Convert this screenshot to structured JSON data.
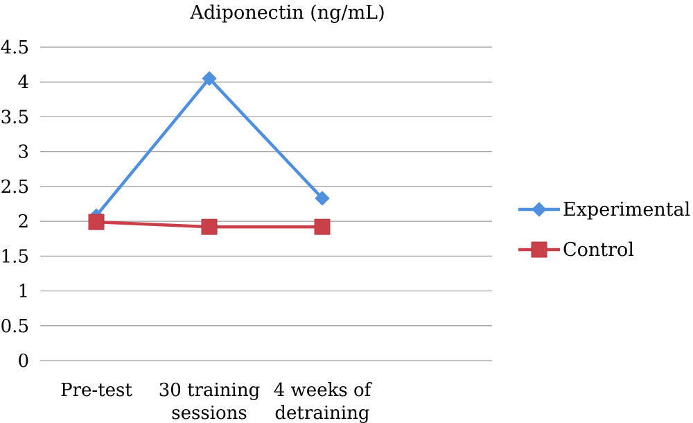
{
  "chart_data": {
    "type": "line",
    "title": "Adiponectin (ng/mL)",
    "xlabel": "",
    "ylabel": "",
    "categories": [
      [
        "Pre-test"
      ],
      [
        "30 training",
        "sessions"
      ],
      [
        "4 weeks of",
        "detraining"
      ]
    ],
    "ylim": [
      0,
      4.5
    ],
    "yticks": [
      "0",
      "0.5",
      "1",
      "1.5",
      "2",
      "2.5",
      "3",
      "3.5",
      "4",
      "4.5"
    ],
    "ytick_values": [
      0,
      0.5,
      1,
      1.5,
      2,
      2.5,
      3,
      3.5,
      4,
      4.5
    ],
    "grid": true,
    "legend_position": "right",
    "series": [
      {
        "name": "Experimental",
        "values": [
          2.08,
          4.05,
          2.33
        ],
        "color": "#4f8fe0",
        "marker": "diamond"
      },
      {
        "name": "Control",
        "values": [
          1.99,
          1.92,
          1.92
        ],
        "color": "#c9404a",
        "marker": "square"
      }
    ]
  }
}
